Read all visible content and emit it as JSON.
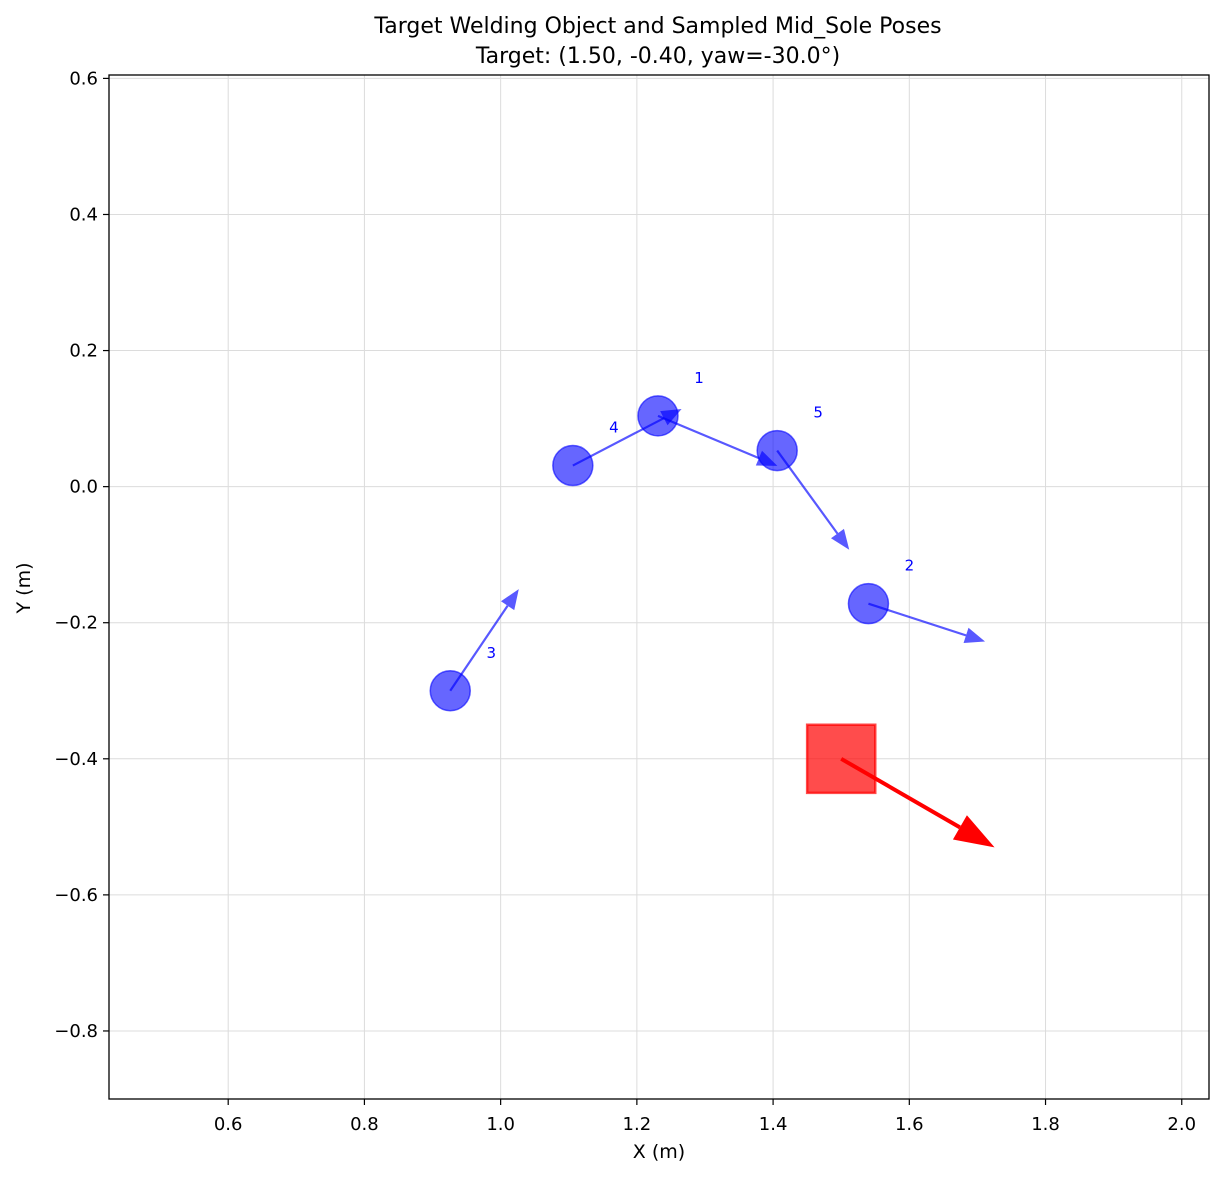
{
  "chart_data": {
    "type": "scatter",
    "title": "Target Welding Object and Sampled Mid_Sole Poses",
    "subtitle": "Target: (1.50, -0.40, yaw=-30.0°)",
    "xlabel": "X (m)",
    "ylabel": "Y (m)",
    "xlim": [
      0.425,
      2.04
    ],
    "ylim": [
      -0.9,
      0.605
    ],
    "xticks": [
      0.6,
      0.8,
      1.0,
      1.2,
      1.4,
      1.6,
      1.8,
      2.0
    ],
    "xtick_labels": [
      "0.6",
      "0.8",
      "1.0",
      "1.2",
      "1.4",
      "1.6",
      "1.8",
      "2.0"
    ],
    "yticks": [
      0.6,
      0.4,
      0.2,
      0.0,
      -0.2,
      -0.4,
      -0.6,
      -0.8
    ],
    "ytick_labels": [
      "0.6",
      "0.4",
      "0.2",
      "0.0",
      "−0.2",
      "−0.4",
      "−0.6",
      "−0.8"
    ],
    "grid": true,
    "target": {
      "x": 1.5,
      "y": -0.4,
      "yaw_deg": -30.0,
      "half_size": 0.05,
      "arrow_length": 0.26,
      "color": "#ff0000"
    },
    "poses": [
      {
        "label": "1",
        "x": 1.231,
        "y": 0.104,
        "yaw_deg": -22.7,
        "arrow_length": 0.19
      },
      {
        "label": "2",
        "x": 1.54,
        "y": -0.172,
        "yaw_deg": -18.0,
        "arrow_length": 0.18
      },
      {
        "label": "3",
        "x": 0.926,
        "y": -0.3,
        "yaw_deg": 56.0,
        "arrow_length": 0.18
      },
      {
        "label": "4",
        "x": 1.106,
        "y": 0.031,
        "yaw_deg": 27.5,
        "arrow_length": 0.18
      },
      {
        "label": "5",
        "x": 1.406,
        "y": 0.053,
        "yaw_deg": -54.0,
        "arrow_length": 0.18
      }
    ],
    "pose_color": "#0000ff"
  }
}
